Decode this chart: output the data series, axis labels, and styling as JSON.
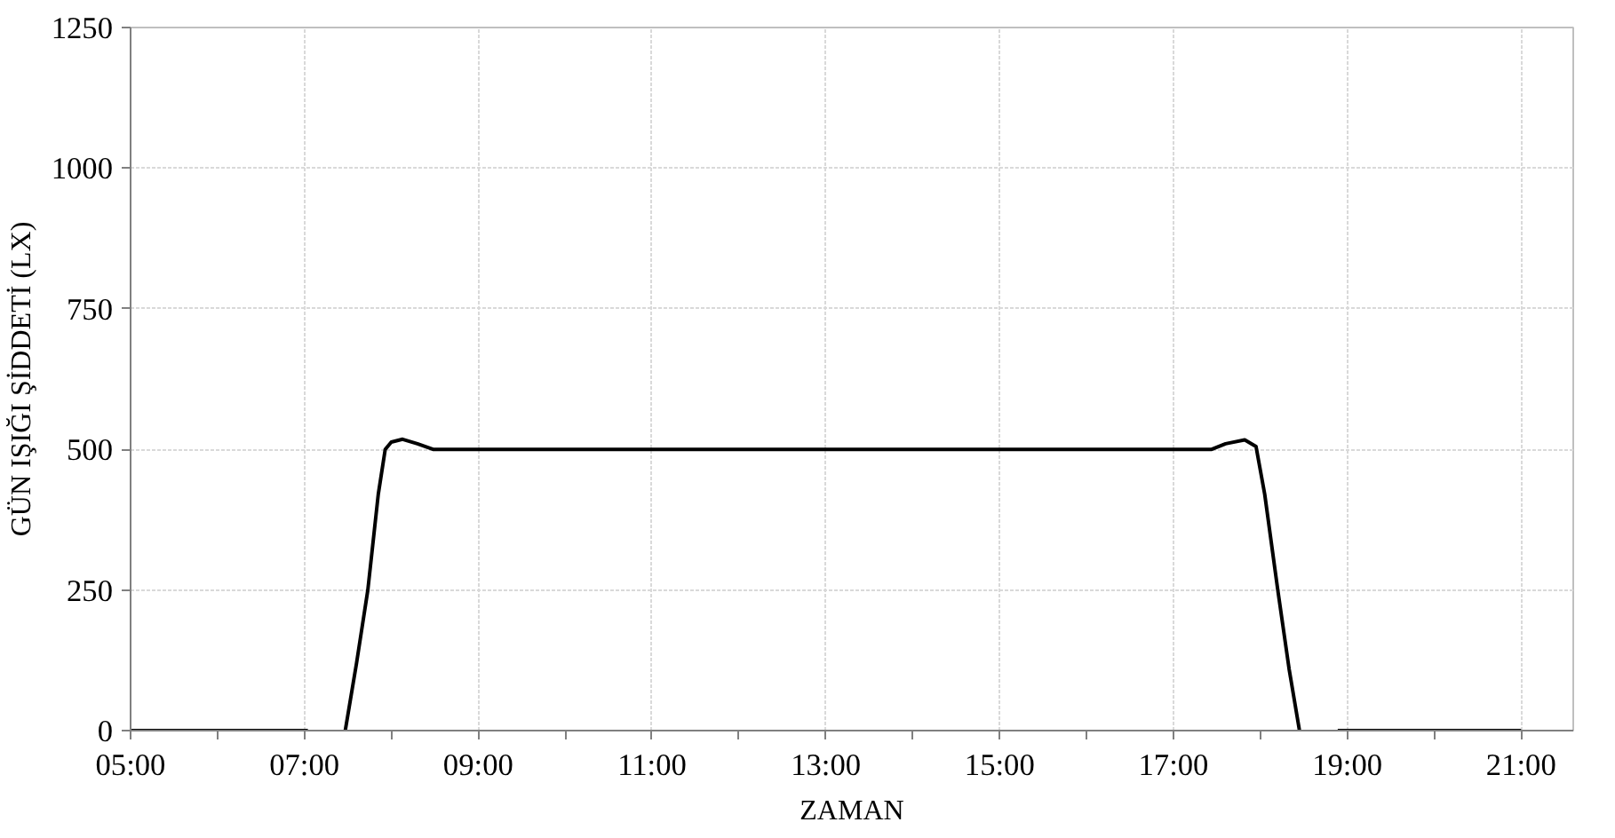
{
  "chart_data": {
    "type": "line",
    "xlabel": "ZAMAN",
    "ylabel": "GÜN IŞIĞI ŞİDDETİ (LX)",
    "xlim": [
      5,
      21.6
    ],
    "ylim": [
      0,
      1250
    ],
    "xticks": [
      {
        "value": 5,
        "label": "05:00"
      },
      {
        "value": 6,
        "label": null
      },
      {
        "value": 7,
        "label": "07:00"
      },
      {
        "value": 8,
        "label": null
      },
      {
        "value": 9,
        "label": "09:00"
      },
      {
        "value": 10,
        "label": null
      },
      {
        "value": 11,
        "label": "11:00"
      },
      {
        "value": 12,
        "label": null
      },
      {
        "value": 13,
        "label": "13:00"
      },
      {
        "value": 14,
        "label": null
      },
      {
        "value": 15,
        "label": "15:00"
      },
      {
        "value": 16,
        "label": null
      },
      {
        "value": 17,
        "label": "17:00"
      },
      {
        "value": 18,
        "label": null
      },
      {
        "value": 19,
        "label": "19:00"
      },
      {
        "value": 20,
        "label": null
      },
      {
        "value": 21,
        "label": "21:00"
      }
    ],
    "yticks": [
      0,
      250,
      500,
      750,
      1000,
      1250
    ],
    "grid": true,
    "marker": "none",
    "line_style": "solid",
    "series": [
      {
        "color": "#000000",
        "x": [
          5,
          6,
          7.04,
          7.2,
          7.47,
          7.6,
          7.73,
          7.85,
          7.93,
          8.0,
          8.13,
          8.3,
          8.48,
          17.44,
          17.6,
          17.82,
          17.95,
          18.05,
          18.2,
          18.33,
          18.45,
          18.7,
          18.89,
          20,
          21
        ],
        "values": [
          0,
          0,
          0,
          null,
          0,
          120,
          250,
          420,
          500,
          513,
          518,
          510,
          500,
          500,
          510,
          517,
          505,
          420,
          250,
          110,
          0,
          null,
          0,
          0,
          0
        ]
      }
    ]
  }
}
